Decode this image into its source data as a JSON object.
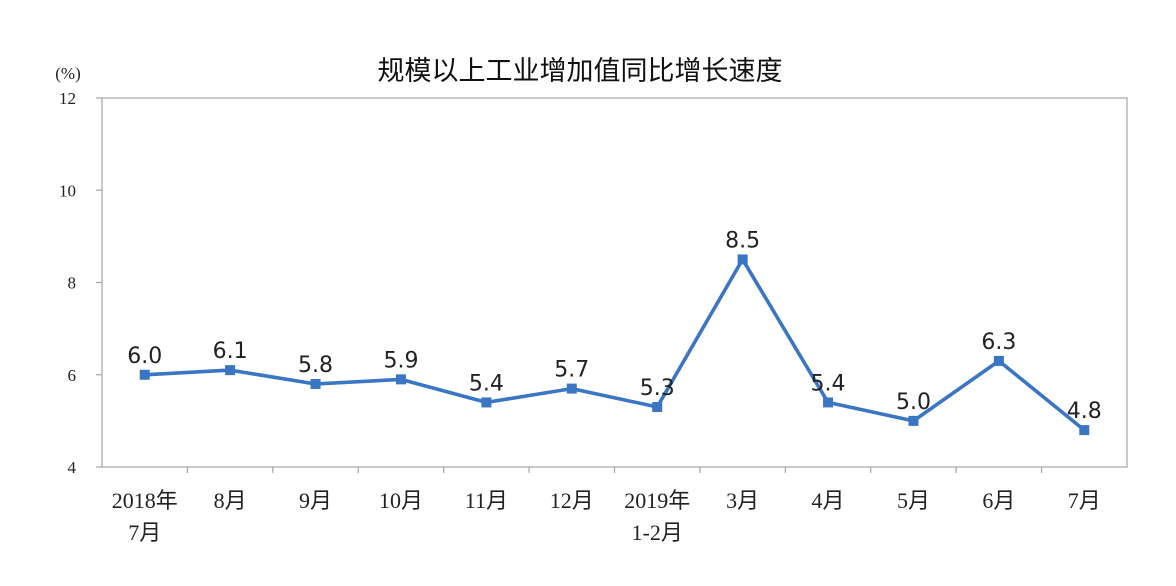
{
  "chart_data": {
    "type": "line",
    "title": "规模以上工业增加值同比增长速度",
    "yunit": "(%)",
    "ylim": [
      4,
      12
    ],
    "yticks": [
      4,
      6,
      8,
      10,
      12
    ],
    "grid": false,
    "categories": [
      [
        "2018年",
        "7月"
      ],
      [
        "8月"
      ],
      [
        "9月"
      ],
      [
        "10月"
      ],
      [
        "11月"
      ],
      [
        "12月"
      ],
      [
        "2019年",
        "1-2月"
      ],
      [
        "3月"
      ],
      [
        "4月"
      ],
      [
        "5月"
      ],
      [
        "6月"
      ],
      [
        "7月"
      ]
    ],
    "series": [
      {
        "values": [
          6.0,
          6.1,
          5.8,
          5.9,
          5.4,
          5.7,
          5.3,
          8.5,
          5.4,
          5.0,
          6.3,
          4.8
        ],
        "labels": [
          "6.0",
          "6.1",
          "5.8",
          "5.9",
          "5.4",
          "5.7",
          "5.3",
          "8.5",
          "5.4",
          "5.0",
          "6.3",
          "4.8"
        ],
        "color": "#3a76c4"
      }
    ]
  }
}
